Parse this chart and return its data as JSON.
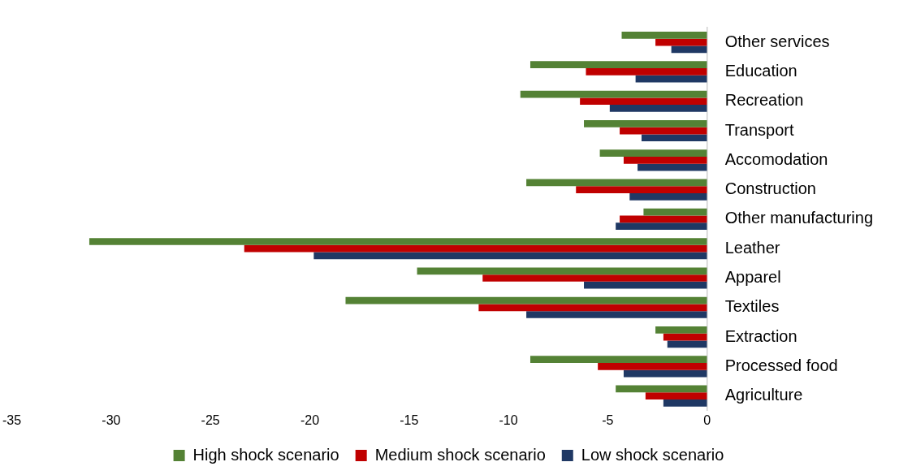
{
  "chart_data": {
    "type": "bar",
    "orientation": "horizontal",
    "categories": [
      "Other services",
      "Education",
      "Recreation",
      "Transport",
      "Accomodation",
      "Construction",
      "Other manufacturing",
      "Leather",
      "Apparel",
      "Textiles",
      "Extraction",
      "Processed food",
      "Agriculture"
    ],
    "series": [
      {
        "name": "High shock scenario",
        "color": "#548235",
        "values": [
          -4.3,
          -8.9,
          -9.4,
          -6.2,
          -5.4,
          -9.1,
          -3.2,
          -31.1,
          -14.6,
          -18.2,
          -2.6,
          -8.9,
          -4.6
        ]
      },
      {
        "name": "Medium shock scenario",
        "color": "#c00000",
        "values": [
          -2.6,
          -6.1,
          -6.4,
          -4.4,
          -4.2,
          -6.6,
          -4.4,
          -23.3,
          -11.3,
          -11.5,
          -2.2,
          -5.5,
          -3.1
        ]
      },
      {
        "name": "Low shock scenario",
        "color": "#1f3864",
        "values": [
          -1.8,
          -3.6,
          -4.9,
          -3.3,
          -3.5,
          -3.9,
          -4.6,
          -19.8,
          -6.2,
          -9.1,
          -2.0,
          -4.2,
          -2.2
        ]
      }
    ],
    "xlim": [
      -35,
      0
    ],
    "xticks": [
      -35,
      -30,
      -25,
      -20,
      -15,
      -10,
      -5,
      0
    ],
    "grid": false,
    "legend": "bottom"
  }
}
